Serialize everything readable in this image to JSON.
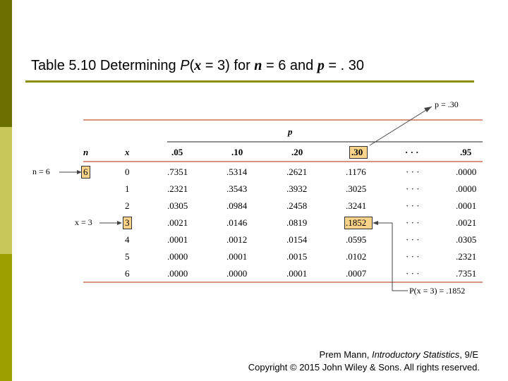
{
  "title": {
    "prefix": "Table 5.10 Determining ",
    "p_letter": "P",
    "open": "(",
    "x_var": "x",
    "mid": " = 3) for ",
    "n_var": "n",
    "eq1": " = 6 and ",
    "p_var": "p",
    "eq2": " = . 30"
  },
  "colors": {
    "sidebar_top": "#6b7000",
    "sidebar_mid": "#c8c85a",
    "sidebar_bottom": "#9ea000",
    "rule_accent": "#8a8f00",
    "table_rule": "#c9705a",
    "highlight": "#fbd38a"
  },
  "annotations": {
    "p_callout": "p = .30",
    "n_callout": "n = 6",
    "x_callout": "x = 3",
    "prob_callout": "P(x = 3) = .1852"
  },
  "table": {
    "super_header": "p",
    "col_n": "n",
    "col_x": "x",
    "p_headers": [
      ".05",
      ".10",
      ".20",
      ".30",
      "· · ·",
      ".95"
    ],
    "n_value": "6",
    "rows": [
      {
        "x": "0",
        "vals": [
          ".7351",
          ".5314",
          ".2621",
          ".1176",
          "· · ·",
          ".0000"
        ]
      },
      {
        "x": "1",
        "vals": [
          ".2321",
          ".3543",
          ".3932",
          ".3025",
          "· · ·",
          ".0000"
        ]
      },
      {
        "x": "2",
        "vals": [
          ".0305",
          ".0984",
          ".2458",
          ".3241",
          "· · ·",
          ".0001"
        ]
      },
      {
        "x": "3",
        "vals": [
          ".0021",
          ".0146",
          ".0819",
          ".1852",
          "· · ·",
          ".0021"
        ]
      },
      {
        "x": "4",
        "vals": [
          ".0001",
          ".0012",
          ".0154",
          ".0595",
          "· · ·",
          ".0305"
        ]
      },
      {
        "x": "5",
        "vals": [
          ".0000",
          ".0001",
          ".0015",
          ".0102",
          "· · ·",
          ".2321"
        ]
      },
      {
        "x": "6",
        "vals": [
          ".0000",
          ".0000",
          ".0001",
          ".0007",
          "· · ·",
          ".7351"
        ]
      }
    ]
  },
  "credit": {
    "author": "Prem Mann, ",
    "book": "Introductory Statistics",
    "edition": ", 9/E",
    "copyright": "Copyright © 2015 John Wiley & Sons. All rights reserved."
  }
}
